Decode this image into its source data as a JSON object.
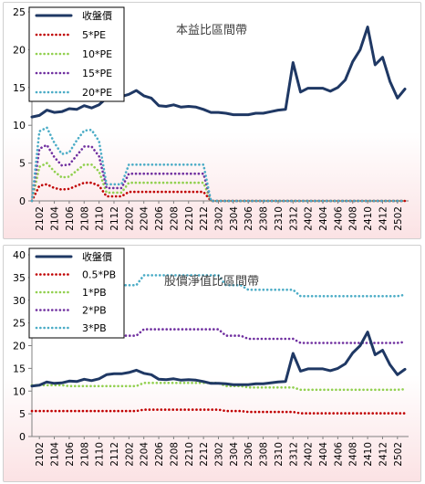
{
  "chart_data": [
    {
      "type": "line",
      "title": "本益比區間帶",
      "ylim": [
        0,
        25
      ],
      "yticks": [
        0,
        5,
        10,
        15,
        20,
        25
      ],
      "x_tick_labels": [
        "2102",
        "2104",
        "2106",
        "2108",
        "2110",
        "2112",
        "2202",
        "2204",
        "2206",
        "2208",
        "2210",
        "2212",
        "2302",
        "2304",
        "2306",
        "2308",
        "2310",
        "2312",
        "2402",
        "2404",
        "2406",
        "2408",
        "2410",
        "2412",
        "2502"
      ],
      "legend_position": "top-left",
      "series": [
        {
          "name": "收盤價",
          "color": "#1f3864",
          "dash": "solid",
          "values": [
            11.1,
            11.3,
            12.0,
            11.7,
            11.8,
            12.2,
            12.1,
            12.6,
            12.3,
            12.7,
            13.6,
            13.8,
            13.8,
            14.1,
            14.6,
            13.9,
            13.6,
            12.6,
            12.5,
            12.7,
            12.4,
            12.5,
            12.4,
            12.1,
            11.7,
            11.7,
            11.6,
            11.4,
            11.4,
            11.4,
            11.6,
            11.6,
            11.8,
            12.0,
            12.1,
            18.3,
            14.4,
            14.9,
            14.9,
            14.9,
            14.5,
            15.0,
            16.0,
            18.4,
            20.0,
            23.0,
            18.0,
            19.0,
            15.8,
            13.6,
            14.8
          ]
        },
        {
          "name": "5*PE",
          "color": "#c00000",
          "dash": "dot",
          "values": [
            0,
            2.0,
            2.2,
            1.7,
            1.5,
            1.6,
            2.0,
            2.4,
            2.4,
            2.0,
            0.6,
            0.6,
            0.6,
            1.2,
            1.2,
            1.2,
            1.2,
            1.2,
            1.2,
            1.2,
            1.2,
            1.2,
            1.2,
            1.2,
            0,
            0,
            0,
            0,
            0,
            0,
            0,
            0,
            0,
            0,
            0,
            0,
            0,
            0,
            0,
            0,
            0,
            0,
            0,
            0,
            0,
            0,
            0,
            0,
            0,
            0,
            0
          ]
        },
        {
          "name": "10*PE",
          "color": "#92d050",
          "dash": "dot",
          "values": [
            0,
            4.5,
            5.0,
            3.9,
            3.1,
            3.2,
            4.0,
            4.8,
            4.8,
            3.9,
            1.1,
            1.1,
            1.1,
            2.4,
            2.4,
            2.4,
            2.4,
            2.4,
            2.4,
            2.4,
            2.4,
            2.4,
            2.4,
            2.4,
            0,
            0,
            0,
            0,
            0,
            0,
            0,
            0,
            0,
            0,
            0,
            0,
            0,
            0,
            0,
            0,
            0,
            0,
            0,
            0,
            0,
            0,
            0,
            0,
            0,
            0,
            0
          ]
        },
        {
          "name": "15*PE",
          "color": "#7030a0",
          "dash": "dot",
          "values": [
            0,
            6.9,
            7.4,
            5.8,
            4.7,
            4.8,
            6.0,
            7.2,
            7.2,
            5.9,
            1.7,
            1.7,
            1.7,
            3.6,
            3.6,
            3.6,
            3.6,
            3.6,
            3.6,
            3.6,
            3.6,
            3.6,
            3.6,
            3.6,
            0,
            0,
            0,
            0,
            0,
            0,
            0,
            0,
            0,
            0,
            0,
            0,
            0,
            0,
            0,
            0,
            0,
            0,
            0,
            0,
            0,
            0,
            0,
            0,
            0,
            0,
            0
          ]
        },
        {
          "name": "20*PE",
          "color": "#4bacc6",
          "dash": "dot",
          "values": [
            0,
            9.2,
            9.7,
            7.7,
            6.2,
            6.4,
            8.0,
            9.3,
            9.4,
            7.9,
            2.2,
            2.2,
            2.2,
            4.8,
            4.8,
            4.8,
            4.8,
            4.8,
            4.8,
            4.8,
            4.8,
            4.8,
            4.8,
            4.8,
            0,
            0,
            0,
            0,
            0,
            0,
            0,
            0,
            0,
            0,
            0,
            0,
            0,
            0,
            0,
            0,
            0,
            0,
            0,
            0,
            0,
            0,
            0,
            0,
            0,
            0,
            0
          ]
        }
      ]
    },
    {
      "type": "line",
      "title": "股價淨值比區間帶",
      "ylim": [
        0,
        40
      ],
      "yticks": [
        0,
        5,
        10,
        15,
        20,
        25,
        30,
        35,
        40
      ],
      "x_tick_labels": [
        "2102",
        "2104",
        "2106",
        "2108",
        "2110",
        "2112",
        "2202",
        "2204",
        "2206",
        "2208",
        "2210",
        "2212",
        "2302",
        "2304",
        "2306",
        "2308",
        "2310",
        "2312",
        "2402",
        "2404",
        "2406",
        "2408",
        "2410",
        "2412",
        "2502"
      ],
      "legend_position": "top-left",
      "series": [
        {
          "name": "收盤價",
          "color": "#1f3864",
          "dash": "solid",
          "values": [
            11.1,
            11.3,
            12.0,
            11.7,
            11.8,
            12.2,
            12.1,
            12.6,
            12.3,
            12.7,
            13.6,
            13.8,
            13.8,
            14.1,
            14.6,
            13.9,
            13.6,
            12.6,
            12.5,
            12.7,
            12.4,
            12.5,
            12.4,
            12.1,
            11.7,
            11.7,
            11.6,
            11.4,
            11.4,
            11.4,
            11.6,
            11.6,
            11.8,
            12.0,
            12.1,
            18.3,
            14.4,
            14.9,
            14.9,
            14.9,
            14.5,
            15.0,
            16.0,
            18.4,
            20.0,
            23.0,
            18.0,
            19.0,
            15.8,
            13.6,
            14.8
          ]
        },
        {
          "name": "0.5*PB",
          "color": "#c00000",
          "dash": "dot",
          "values": [
            5.6,
            5.6,
            5.6,
            5.6,
            5.6,
            5.6,
            5.6,
            5.6,
            5.6,
            5.6,
            5.6,
            5.6,
            5.6,
            5.6,
            5.6,
            5.9,
            5.9,
            5.9,
            5.9,
            5.9,
            5.9,
            5.9,
            5.9,
            5.9,
            5.9,
            5.9,
            5.6,
            5.6,
            5.6,
            5.4,
            5.4,
            5.4,
            5.4,
            5.4,
            5.4,
            5.4,
            5.1,
            5.1,
            5.1,
            5.1,
            5.1,
            5.1,
            5.1,
            5.1,
            5.1,
            5.1,
            5.1,
            5.1,
            5.1,
            5.1,
            5.1
          ]
        },
        {
          "name": "1*PB",
          "color": "#92d050",
          "dash": "dot",
          "values": [
            11.3,
            11.3,
            11.3,
            11.3,
            11.3,
            11.1,
            11.1,
            11.1,
            11.1,
            11.1,
            11.1,
            11.1,
            11.1,
            11.1,
            11.1,
            11.8,
            11.8,
            11.8,
            11.8,
            11.8,
            11.8,
            11.8,
            11.8,
            11.8,
            11.8,
            11.8,
            11.1,
            11.1,
            11.1,
            10.8,
            10.8,
            10.8,
            10.8,
            10.8,
            10.8,
            10.8,
            10.3,
            10.3,
            10.3,
            10.3,
            10.3,
            10.3,
            10.3,
            10.3,
            10.3,
            10.3,
            10.3,
            10.3,
            10.3,
            10.3,
            10.4
          ]
        },
        {
          "name": "2*PB",
          "color": "#7030a0",
          "dash": "dot",
          "values": [
            22.6,
            22.6,
            22.6,
            22.6,
            22.6,
            22.2,
            22.2,
            22.2,
            22.2,
            22.2,
            22.2,
            22.2,
            22.2,
            22.2,
            22.2,
            23.6,
            23.6,
            23.6,
            23.6,
            23.6,
            23.6,
            23.6,
            23.6,
            23.6,
            23.6,
            23.6,
            22.2,
            22.2,
            22.2,
            21.5,
            21.5,
            21.5,
            21.5,
            21.5,
            21.5,
            21.5,
            20.6,
            20.6,
            20.6,
            20.6,
            20.6,
            20.6,
            20.6,
            20.6,
            20.6,
            20.6,
            20.6,
            20.6,
            20.6,
            20.6,
            20.8
          ]
        },
        {
          "name": "3*PB",
          "color": "#4bacc6",
          "dash": "dot",
          "values": [
            33.9,
            33.9,
            33.9,
            33.9,
            33.9,
            33.3,
            33.3,
            33.3,
            33.3,
            33.3,
            33.3,
            33.3,
            33.3,
            33.3,
            33.3,
            35.5,
            35.5,
            35.5,
            35.5,
            35.5,
            35.5,
            35.5,
            35.5,
            35.5,
            35.5,
            35.5,
            33.3,
            33.3,
            33.3,
            32.3,
            32.3,
            32.3,
            32.3,
            32.3,
            32.3,
            32.3,
            30.9,
            30.9,
            30.9,
            30.9,
            30.9,
            30.9,
            30.9,
            30.9,
            30.9,
            30.9,
            30.9,
            30.9,
            30.9,
            30.9,
            31.2
          ]
        }
      ]
    }
  ]
}
